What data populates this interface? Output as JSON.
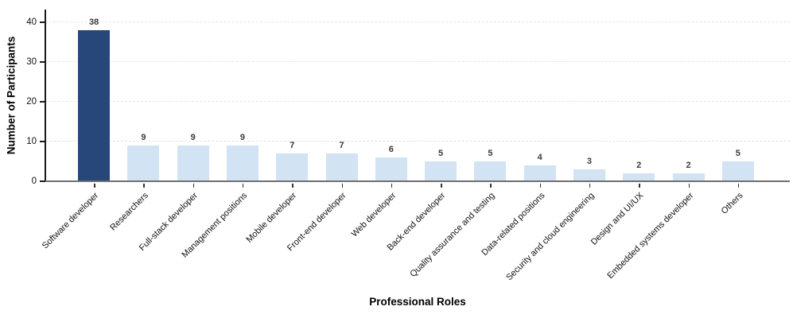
{
  "chart_data": {
    "type": "bar",
    "title": "",
    "xlabel": "Professional Roles",
    "ylabel": "Number of Participants",
    "categories": [
      "Software developer",
      "Researchers",
      "Full-stack developer",
      "Management positions",
      "Mobile developer",
      "Front-end developer",
      "Web developer",
      "Back-end developer",
      "Quality assurance and testing",
      "Data-related positions",
      "Security and cloud engineering",
      "Design and UI/UX",
      "Embedded systems developer",
      "Others"
    ],
    "values": [
      38,
      9,
      9,
      9,
      7,
      7,
      6,
      5,
      5,
      4,
      3,
      2,
      2,
      5
    ],
    "value_labels": [
      "38",
      "9",
      "9",
      "9",
      "7",
      "7",
      "6",
      "5",
      "5",
      "4",
      "3",
      "2",
      "2",
      "5"
    ],
    "yticks": [
      0,
      10,
      20,
      30,
      40
    ],
    "ytick_labels": [
      "0",
      "10",
      "20",
      "30",
      "40"
    ],
    "ylim": [
      0,
      43.2
    ],
    "grid": "horizontal-dashed",
    "legend": "none",
    "colors": {
      "highlight_bar": "#27477a",
      "default_bar": "#d2e3f3",
      "baseline": "#6e6e6e",
      "gridline": "#e4e4e4",
      "value_label": "#3a3a3a",
      "tick_label": "#111111"
    },
    "highlight_index": 0
  }
}
